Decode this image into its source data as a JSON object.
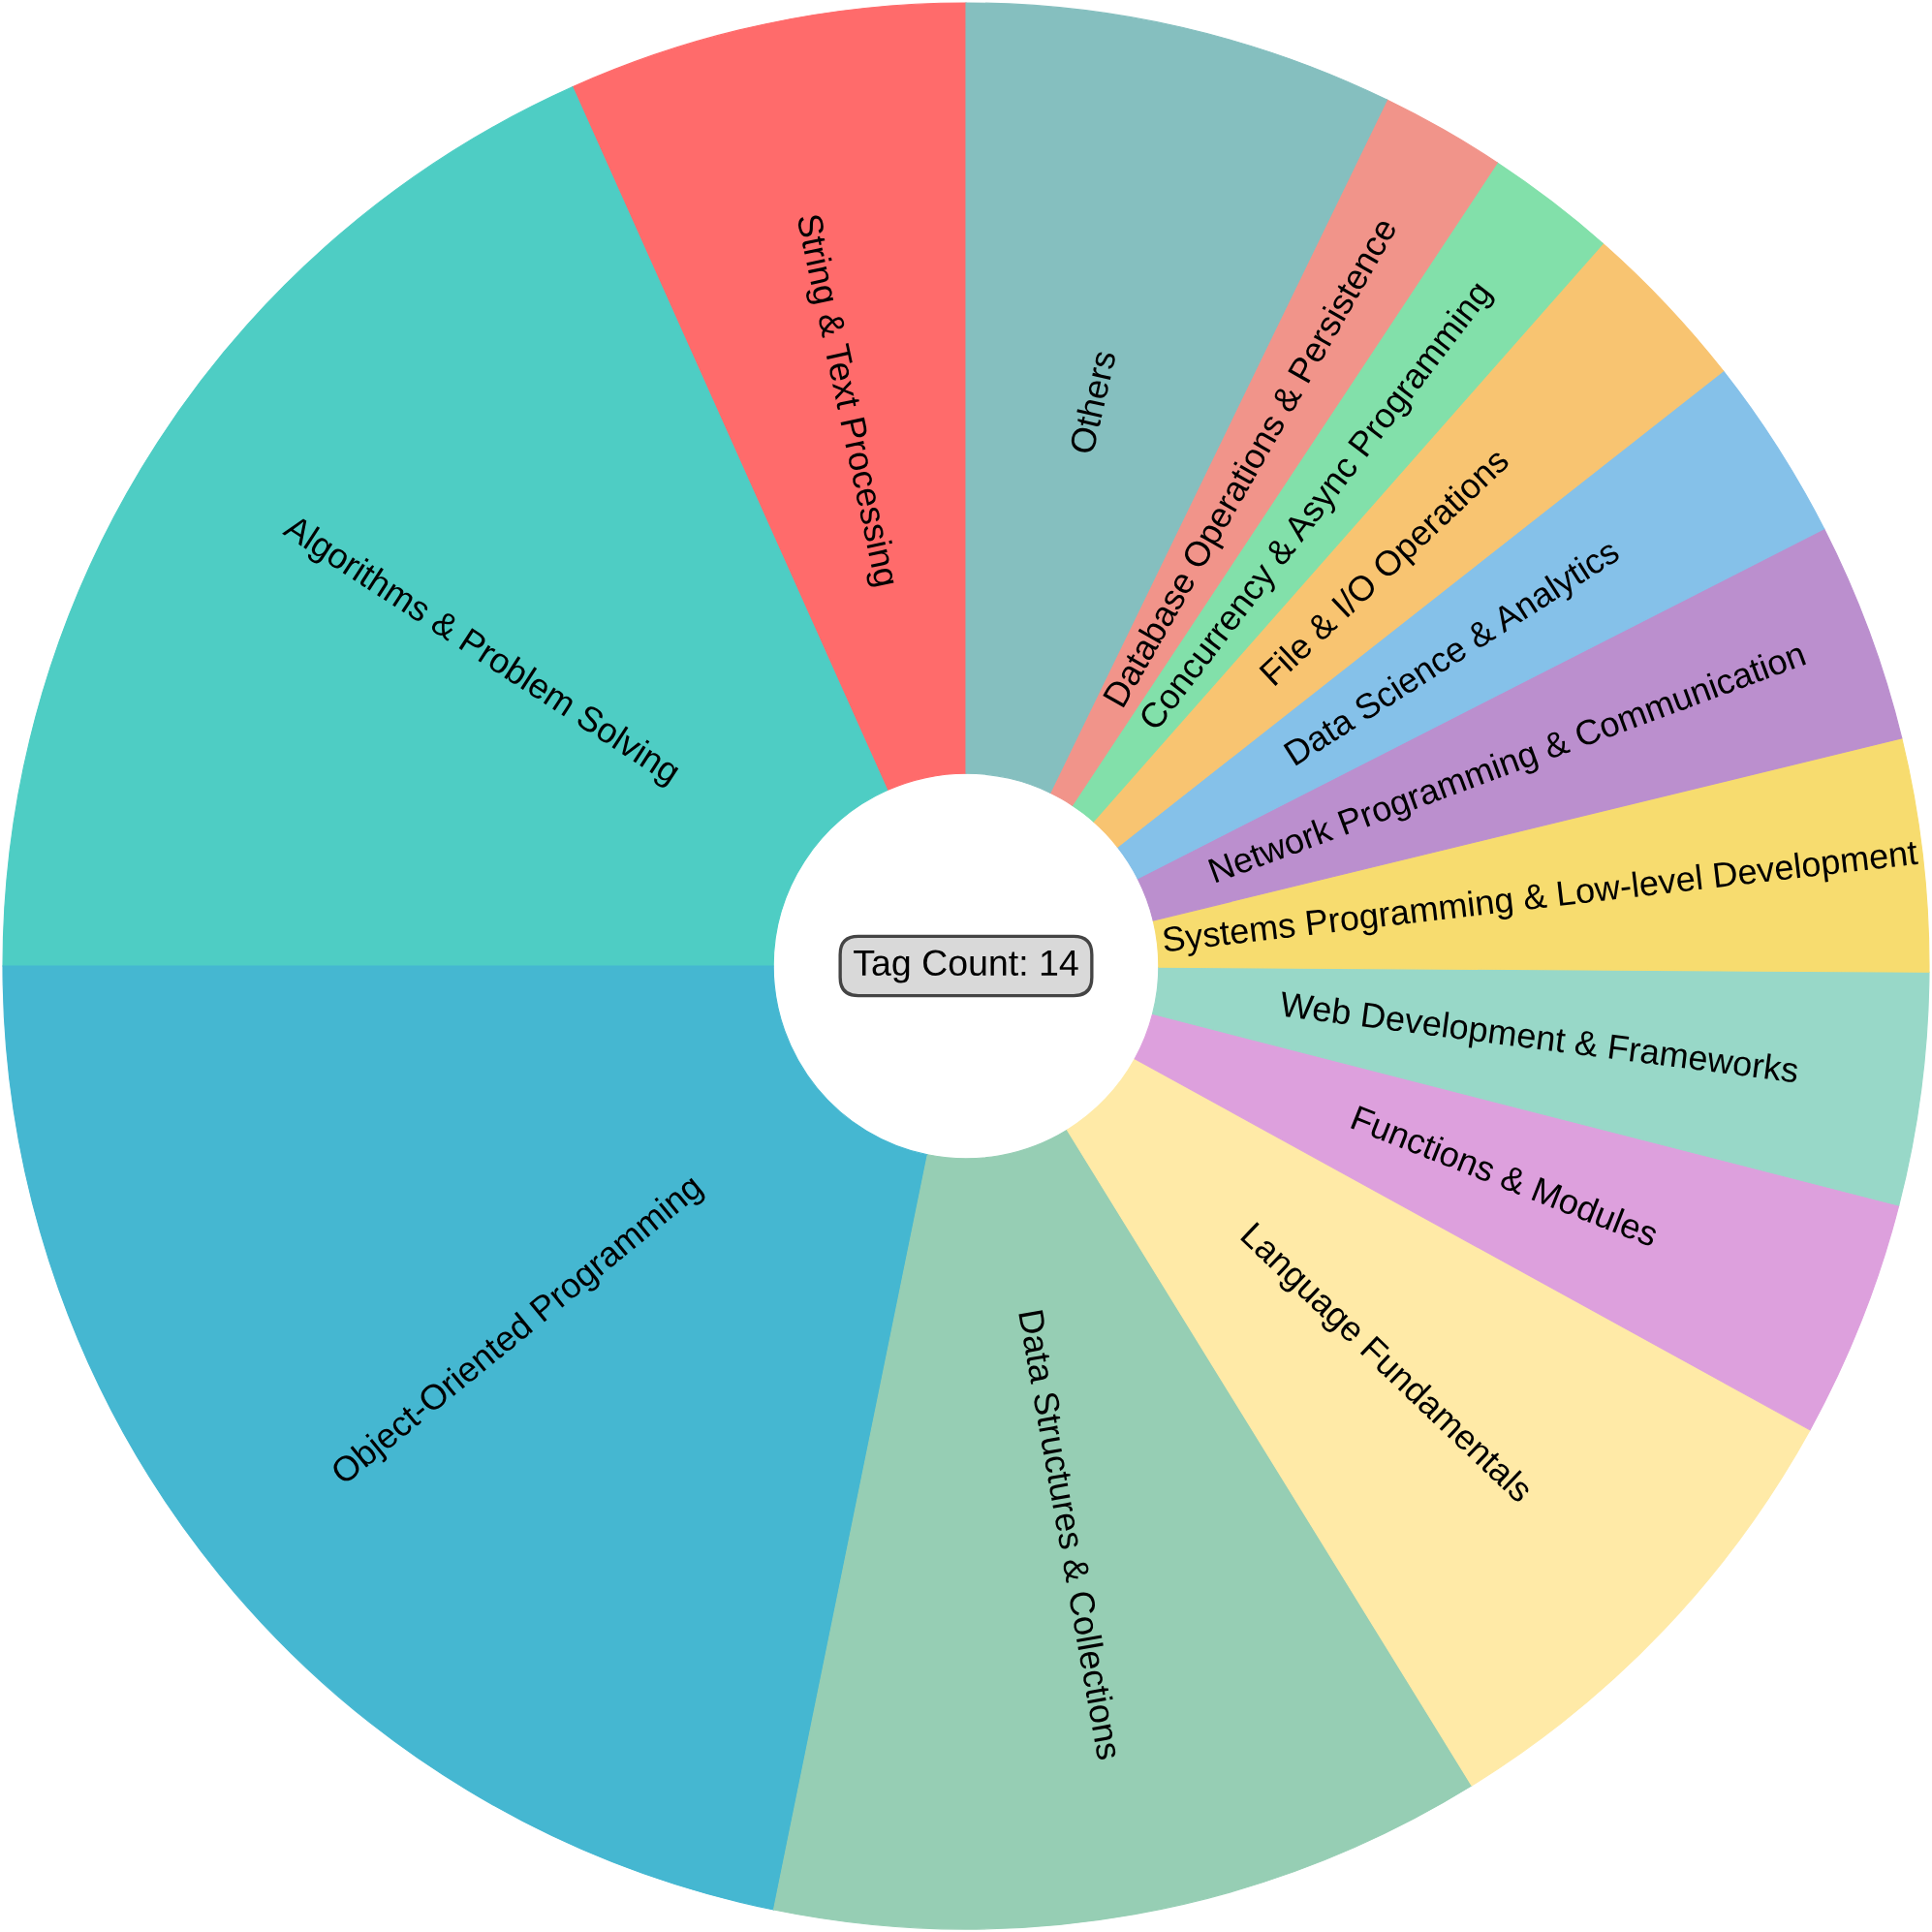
{
  "chart_data": {
    "type": "donut",
    "categories": [
      "String & Text Processing",
      "Algorithms & Problem Solving",
      "Object-Oriented Programming",
      "Data Structures & Collections",
      "Language Fundamentals",
      "Functions & Modules",
      "Web Development & Frameworks",
      "Systems Programming & Low-level Development",
      "Network Programming & Communication",
      "Data Science & Analytics",
      "File & I/O Operations",
      "Concurrency & Async Programming",
      "Database Operations & Persistence",
      "Others"
    ],
    "values": [
      6.7,
      18.3,
      21.8,
      12.0,
      8.2,
      4.0,
      3.9,
      3.9,
      3.7,
      3.1,
      2.9,
      2.2,
      2.1,
      7.2
    ],
    "colors": [
      "#ff6b6b",
      "#4ecdc4",
      "#45b7d1",
      "#96ceb4",
      "#ffeaa7",
      "#dda0dd",
      "#98d8c8",
      "#f7dc6f",
      "#bb8fce",
      "#85c1e9",
      "#f8c471",
      "#82e0aa",
      "#f1948a",
      "#85bfbf"
    ],
    "annotations": [
      "Tag Count: 14"
    ]
  }
}
